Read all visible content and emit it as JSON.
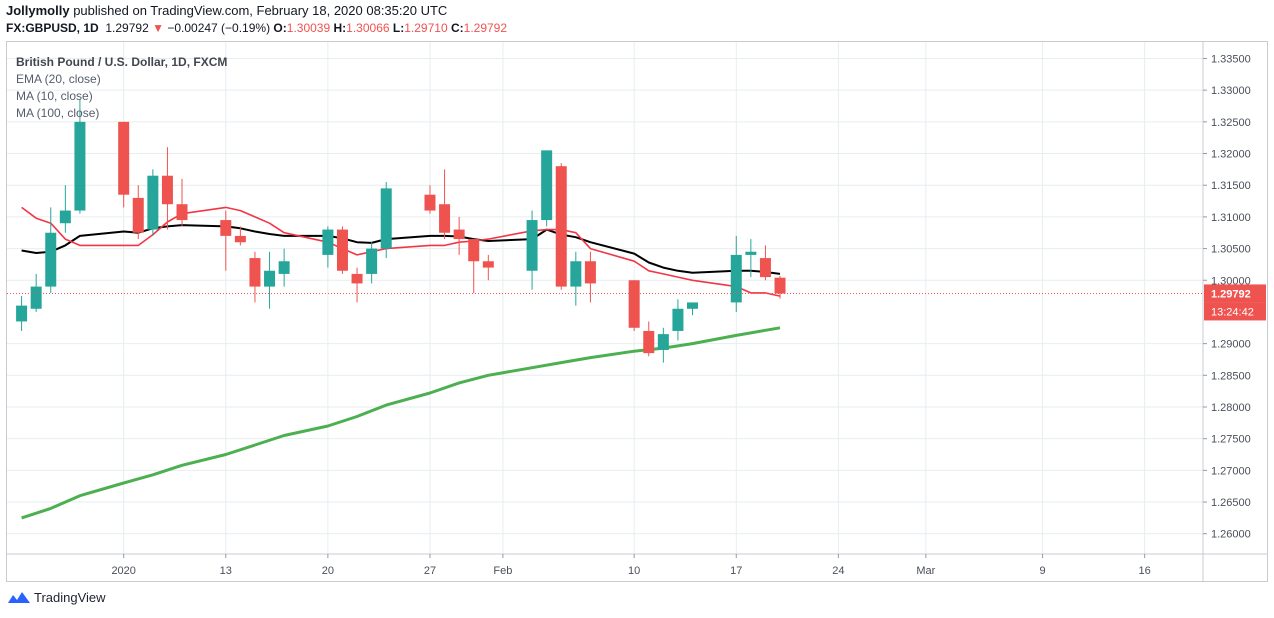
{
  "header": {
    "author": "Jollymolly",
    "published_text": " published on TradingView.com, February 18, 2020 08:35:20 UTC",
    "symbol": "FX:GBPUSD, 1D",
    "last": "1.29792",
    "change_arrow": "▼",
    "change": "−0.00247 (−0.19%)",
    "o_label": "O:",
    "o_value": "1.30039",
    "h_label": "H:",
    "h_value": "1.30066",
    "l_label": "L:",
    "l_value": "1.29710",
    "c_label": "C:",
    "c_value": "1.29792"
  },
  "legend": {
    "main": "British Pound / U.S. Dollar, 1D, FXCM",
    "ema": "EMA (20, close)",
    "ma10": "MA (10, close)",
    "ma100": "MA (100, close)"
  },
  "footer": {
    "brand": "TradingView"
  },
  "colors": {
    "up": "#26a69a",
    "down": "#ef5350",
    "ema": "#000000",
    "ma10": "#f23645",
    "ma100": "#4caf50",
    "grid": "#e6eef0",
    "axis_text": "#4a4f5a"
  },
  "chart_data": {
    "type": "candlestick",
    "title": "British Pound / U.S. Dollar, 1D, FXCM",
    "ylim": [
      1.2568,
      1.3376
    ],
    "y_ticks": [
      "1.33500",
      "1.33000",
      "1.32500",
      "1.32000",
      "1.31500",
      "1.31000",
      "1.30500",
      "1.30000",
      "1.29000",
      "1.28500",
      "1.28000",
      "1.27500",
      "1.27000",
      "1.26500",
      "1.26000"
    ],
    "x_ticks": [
      {
        "label": "2020",
        "day": 6
      },
      {
        "label": "13",
        "day": 13
      },
      {
        "label": "20",
        "day": 20
      },
      {
        "label": "27",
        "day": 27
      },
      {
        "label": "Feb",
        "day": 32
      },
      {
        "label": "10",
        "day": 41
      },
      {
        "label": "17",
        "day": 48
      },
      {
        "label": "24",
        "day": 55
      },
      {
        "label": "Mar",
        "day": 61
      },
      {
        "label": "9",
        "day": 69
      },
      {
        "label": "16",
        "day": 76
      }
    ],
    "x_range_days": [
      -2,
      80
    ],
    "price_label": "1.29792",
    "countdown_label": "13:24:42",
    "candles": [
      {
        "d": -1,
        "o": 1.2935,
        "h": 1.2975,
        "l": 1.292,
        "c": 1.296
      },
      {
        "d": 0,
        "o": 1.2955,
        "h": 1.301,
        "l": 1.295,
        "c": 1.299
      },
      {
        "d": 1,
        "o": 1.299,
        "h": 1.3115,
        "l": 1.298,
        "c": 1.3075
      },
      {
        "d": 2,
        "o": 1.309,
        "h": 1.315,
        "l": 1.3075,
        "c": 1.311
      },
      {
        "d": 3,
        "o": 1.311,
        "h": 1.3285,
        "l": 1.3105,
        "c": 1.325
      },
      {
        "d": 6,
        "o": 1.325,
        "h": 1.325,
        "l": 1.3115,
        "c": 1.3135
      },
      {
        "d": 7,
        "o": 1.313,
        "h": 1.315,
        "l": 1.3065,
        "c": 1.3075
      },
      {
        "d": 8,
        "o": 1.308,
        "h": 1.3175,
        "l": 1.307,
        "c": 1.3165
      },
      {
        "d": 9,
        "o": 1.3165,
        "h": 1.321,
        "l": 1.308,
        "c": 1.312
      },
      {
        "d": 10,
        "o": 1.312,
        "h": 1.316,
        "l": 1.3085,
        "c": 1.3095
      },
      {
        "d": 13,
        "o": 1.3095,
        "h": 1.311,
        "l": 1.3015,
        "c": 1.307
      },
      {
        "d": 14,
        "o": 1.307,
        "h": 1.3085,
        "l": 1.3055,
        "c": 1.306
      },
      {
        "d": 15,
        "o": 1.3035,
        "h": 1.3045,
        "l": 1.2965,
        "c": 1.299
      },
      {
        "d": 16,
        "o": 1.299,
        "h": 1.3045,
        "l": 1.2955,
        "c": 1.3015
      },
      {
        "d": 17,
        "o": 1.301,
        "h": 1.305,
        "l": 1.299,
        "c": 1.303
      },
      {
        "d": 20,
        "o": 1.304,
        "h": 1.3085,
        "l": 1.302,
        "c": 1.308
      },
      {
        "d": 21,
        "o": 1.308,
        "h": 1.3085,
        "l": 1.301,
        "c": 1.3015
      },
      {
        "d": 22,
        "o": 1.301,
        "h": 1.302,
        "l": 1.2965,
        "c": 1.2995
      },
      {
        "d": 23,
        "o": 1.301,
        "h": 1.306,
        "l": 1.2995,
        "c": 1.305
      },
      {
        "d": 24,
        "o": 1.305,
        "h": 1.3155,
        "l": 1.3035,
        "c": 1.3145
      },
      {
        "d": 27,
        "o": 1.3135,
        "h": 1.315,
        "l": 1.3105,
        "c": 1.311
      },
      {
        "d": 28,
        "o": 1.312,
        "h": 1.3175,
        "l": 1.3065,
        "c": 1.3075
      },
      {
        "d": 29,
        "o": 1.308,
        "h": 1.31,
        "l": 1.304,
        "c": 1.3065
      },
      {
        "d": 30,
        "o": 1.3065,
        "h": 1.3065,
        "l": 1.298,
        "c": 1.303
      },
      {
        "d": 31,
        "o": 1.303,
        "h": 1.304,
        "l": 1.3,
        "c": 1.302
      },
      {
        "d": 34,
        "o": 1.3015,
        "h": 1.311,
        "l": 1.2985,
        "c": 1.3095
      },
      {
        "d": 35,
        "o": 1.3095,
        "h": 1.3205,
        "l": 1.3085,
        "c": 1.3205
      },
      {
        "d": 36,
        "o": 1.318,
        "h": 1.3185,
        "l": 1.2985,
        "c": 1.299
      },
      {
        "d": 37,
        "o": 1.299,
        "h": 1.3045,
        "l": 1.296,
        "c": 1.303
      },
      {
        "d": 38,
        "o": 1.303,
        "h": 1.3045,
        "l": 1.2965,
        "c": 1.2995
      },
      {
        "d": 41,
        "o": 1.3,
        "h": 1.3,
        "l": 1.292,
        "c": 1.2925
      },
      {
        "d": 42,
        "o": 1.292,
        "h": 1.2935,
        "l": 1.288,
        "c": 1.2885
      },
      {
        "d": 43,
        "o": 1.289,
        "h": 1.2925,
        "l": 1.287,
        "c": 1.2915
      },
      {
        "d": 44,
        "o": 1.292,
        "h": 1.297,
        "l": 1.2905,
        "c": 1.2955
      },
      {
        "d": 45,
        "o": 1.2955,
        "h": 1.2965,
        "l": 1.2945,
        "c": 1.2965
      },
      {
        "d": 48,
        "o": 1.2965,
        "h": 1.307,
        "l": 1.295,
        "c": 1.304
      },
      {
        "d": 49,
        "o": 1.304,
        "h": 1.3065,
        "l": 1.3005,
        "c": 1.3045
      },
      {
        "d": 50,
        "o": 1.3035,
        "h": 1.3055,
        "l": 1.3,
        "c": 1.3005
      },
      {
        "d": 51,
        "o": 1.3004,
        "h": 1.3007,
        "l": 1.2971,
        "c": 1.2979
      }
    ],
    "series": [
      {
        "name": "EMA (20, close)",
        "color": "#000000",
        "points": [
          [
            -1,
            1.3047
          ],
          [
            0,
            1.3043
          ],
          [
            1,
            1.3045
          ],
          [
            2,
            1.3055
          ],
          [
            3,
            1.307
          ],
          [
            6,
            1.3077
          ],
          [
            7,
            1.3075
          ],
          [
            8,
            1.3082
          ],
          [
            9,
            1.3085
          ],
          [
            10,
            1.3087
          ],
          [
            13,
            1.3085
          ],
          [
            14,
            1.3082
          ],
          [
            15,
            1.3077
          ],
          [
            16,
            1.3073
          ],
          [
            17,
            1.307
          ],
          [
            20,
            1.307
          ],
          [
            21,
            1.3066
          ],
          [
            22,
            1.306
          ],
          [
            23,
            1.3059
          ],
          [
            24,
            1.3065
          ],
          [
            27,
            1.307
          ],
          [
            28,
            1.307
          ],
          [
            29,
            1.3069
          ],
          [
            30,
            1.3065
          ],
          [
            31,
            1.3062
          ],
          [
            34,
            1.3065
          ],
          [
            35,
            1.308
          ],
          [
            36,
            1.3072
          ],
          [
            37,
            1.3068
          ],
          [
            38,
            1.306
          ],
          [
            41,
            1.3042
          ],
          [
            42,
            1.3028
          ],
          [
            43,
            1.302
          ],
          [
            44,
            1.3015
          ],
          [
            45,
            1.3012
          ],
          [
            48,
            1.3015
          ],
          [
            49,
            1.3015
          ],
          [
            50,
            1.3013
          ],
          [
            51,
            1.301
          ]
        ]
      },
      {
        "name": "MA (10, close)",
        "color": "#f23645",
        "points": [
          [
            -1,
            1.3115
          ],
          [
            0,
            1.3098
          ],
          [
            1,
            1.309
          ],
          [
            2,
            1.3065
          ],
          [
            3,
            1.3055
          ],
          [
            6,
            1.3055
          ],
          [
            7,
            1.3055
          ],
          [
            8,
            1.3072
          ],
          [
            9,
            1.3092
          ],
          [
            10,
            1.3105
          ],
          [
            13,
            1.3115
          ],
          [
            14,
            1.311
          ],
          [
            15,
            1.31
          ],
          [
            16,
            1.309
          ],
          [
            17,
            1.3075
          ],
          [
            20,
            1.306
          ],
          [
            21,
            1.305
          ],
          [
            22,
            1.304
          ],
          [
            23,
            1.3045
          ],
          [
            24,
            1.305
          ],
          [
            27,
            1.3055
          ],
          [
            28,
            1.3055
          ],
          [
            29,
            1.306
          ],
          [
            30,
            1.3062
          ],
          [
            31,
            1.3065
          ],
          [
            34,
            1.3078
          ],
          [
            35,
            1.308
          ],
          [
            36,
            1.308
          ],
          [
            37,
            1.3075
          ],
          [
            38,
            1.305
          ],
          [
            41,
            1.303
          ],
          [
            42,
            1.3015
          ],
          [
            43,
            1.301
          ],
          [
            44,
            1.3005
          ],
          [
            45,
            1.3
          ],
          [
            48,
            1.299
          ],
          [
            49,
            1.298
          ],
          [
            50,
            1.298
          ],
          [
            51,
            1.2975
          ]
        ]
      },
      {
        "name": "MA (100, close)",
        "color": "#4caf50",
        "points": [
          [
            -1,
            1.2625
          ],
          [
            1,
            1.264
          ],
          [
            3,
            1.266
          ],
          [
            6,
            1.268
          ],
          [
            8,
            1.2693
          ],
          [
            10,
            1.2708
          ],
          [
            13,
            1.2725
          ],
          [
            15,
            1.274
          ],
          [
            17,
            1.2755
          ],
          [
            20,
            1.277
          ],
          [
            22,
            1.2785
          ],
          [
            24,
            1.2803
          ],
          [
            27,
            1.2822
          ],
          [
            29,
            1.2838
          ],
          [
            31,
            1.285
          ],
          [
            34,
            1.2862
          ],
          [
            36,
            1.287
          ],
          [
            38,
            1.2878
          ],
          [
            41,
            1.2888
          ],
          [
            43,
            1.2893
          ],
          [
            45,
            1.29
          ],
          [
            48,
            1.2913
          ],
          [
            50,
            1.2921
          ],
          [
            51,
            1.2925
          ]
        ]
      }
    ]
  }
}
